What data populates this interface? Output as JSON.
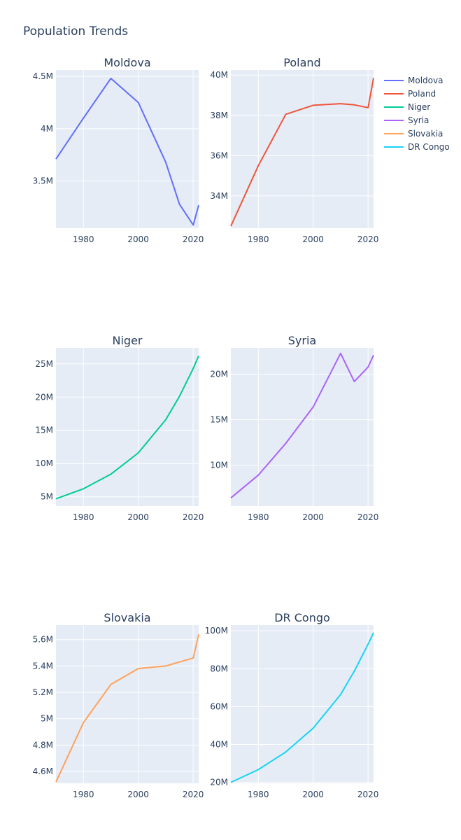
{
  "title": "Population Trends",
  "colors": {
    "plot_bg": "#e5ecf6",
    "grid": "#ffffff",
    "text": "#2a3f5f",
    "page_bg": "#ffffff"
  },
  "legend": {
    "placement": "top-right",
    "items": [
      {
        "name": "Moldova",
        "color": "#636efa"
      },
      {
        "name": "Poland",
        "color": "#ef553b"
      },
      {
        "name": "Niger",
        "color": "#00cc96"
      },
      {
        "name": "Syria",
        "color": "#ab63fa"
      },
      {
        "name": "Slovakia",
        "color": "#ffa15a"
      },
      {
        "name": "DR Congo",
        "color": "#19d3f3"
      }
    ]
  },
  "chart_data": [
    {
      "type": "line",
      "title": "Moldova",
      "name": "Moldova",
      "color": "#636efa",
      "x": [
        1970,
        1980,
        1990,
        2000,
        2010,
        2015,
        2020,
        2022
      ],
      "y": [
        3710000,
        4100000,
        4480000,
        4250000,
        3680000,
        3280000,
        3080000,
        3270000
      ],
      "xlim": [
        1970,
        2022
      ],
      "ylim": [
        3050000,
        4560000
      ],
      "xticks": [
        1980,
        2000,
        2020
      ],
      "xtick_labels": [
        "1980",
        "2000",
        "2020"
      ],
      "yticks": [
        3500000,
        4000000,
        4500000
      ],
      "ytick_labels": [
        "3.5M",
        "4M",
        "4.5M"
      ],
      "grid": true
    },
    {
      "type": "line",
      "title": "Poland",
      "name": "Poland",
      "color": "#ef553b",
      "x": [
        1970,
        1980,
        1990,
        2000,
        2010,
        2015,
        2020,
        2022
      ],
      "y": [
        32500000,
        35500000,
        38050000,
        38500000,
        38580000,
        38520000,
        38380000,
        39850000
      ],
      "xlim": [
        1970,
        2022
      ],
      "ylim": [
        32400000,
        40250000
      ],
      "xticks": [
        1980,
        2000,
        2020
      ],
      "xtick_labels": [
        "1980",
        "2000",
        "2020"
      ],
      "yticks": [
        34000000,
        36000000,
        38000000,
        40000000
      ],
      "ytick_labels": [
        "34M",
        "36M",
        "38M",
        "40M"
      ],
      "grid": true
    },
    {
      "type": "line",
      "title": "Niger",
      "name": "Niger",
      "color": "#00cc96",
      "x": [
        1970,
        1980,
        1990,
        2000,
        2010,
        2015,
        2020,
        2022
      ],
      "y": [
        4700000,
        6200000,
        8400000,
        11600000,
        16600000,
        20100000,
        24300000,
        26200000
      ],
      "xlim": [
        1970,
        2022
      ],
      "ylim": [
        3600000,
        27400000
      ],
      "xticks": [
        1980,
        2000,
        2020
      ],
      "xtick_labels": [
        "1980",
        "2000",
        "2020"
      ],
      "yticks": [
        5000000,
        10000000,
        15000000,
        20000000,
        25000000
      ],
      "ytick_labels": [
        "5M",
        "10M",
        "15M",
        "20M",
        "25M"
      ],
      "grid": true
    },
    {
      "type": "line",
      "title": "Syria",
      "name": "Syria",
      "color": "#ab63fa",
      "x": [
        1970,
        1980,
        1990,
        2000,
        2010,
        2015,
        2020,
        2022
      ],
      "y": [
        6400000,
        8900000,
        12400000,
        16400000,
        22300000,
        19200000,
        20800000,
        22100000
      ],
      "xlim": [
        1970,
        2022
      ],
      "ylim": [
        5500000,
        22900000
      ],
      "xticks": [
        1980,
        2000,
        2020
      ],
      "xtick_labels": [
        "1980",
        "2000",
        "2020"
      ],
      "yticks": [
        10000000,
        15000000,
        20000000
      ],
      "ytick_labels": [
        "10M",
        "15M",
        "20M"
      ],
      "grid": true
    },
    {
      "type": "line",
      "title": "Slovakia",
      "name": "Slovakia",
      "color": "#ffa15a",
      "x": [
        1970,
        1980,
        1990,
        2000,
        2010,
        2020,
        2022
      ],
      "y": [
        4520000,
        4970000,
        5260000,
        5380000,
        5400000,
        5460000,
        5640000
      ],
      "xlim": [
        1970,
        2022
      ],
      "ylim": [
        4510000,
        5710000
      ],
      "xticks": [
        1980,
        2000,
        2020
      ],
      "xtick_labels": [
        "1980",
        "2000",
        "2020"
      ],
      "yticks": [
        4600000,
        4800000,
        5000000,
        5200000,
        5400000,
        5600000
      ],
      "ytick_labels": [
        "4.6M",
        "4.8M",
        "5M",
        "5.2M",
        "5.4M",
        "5.6M"
      ],
      "grid": true
    },
    {
      "type": "line",
      "title": "DR Congo",
      "name": "DR Congo",
      "color": "#19d3f3",
      "x": [
        1970,
        1980,
        1990,
        2000,
        2010,
        2015,
        2020,
        2022
      ],
      "y": [
        20000000,
        26700000,
        36000000,
        48600000,
        66300000,
        78700000,
        92900000,
        99000000
      ],
      "xlim": [
        1970,
        2022
      ],
      "ylim": [
        19500000,
        103000000
      ],
      "xticks": [
        1980,
        2000,
        2020
      ],
      "xtick_labels": [
        "1980",
        "2000",
        "2020"
      ],
      "yticks": [
        20000000,
        40000000,
        60000000,
        80000000,
        100000000
      ],
      "ytick_labels": [
        "20M",
        "40M",
        "60M",
        "80M",
        "100M"
      ],
      "grid": true
    }
  ]
}
